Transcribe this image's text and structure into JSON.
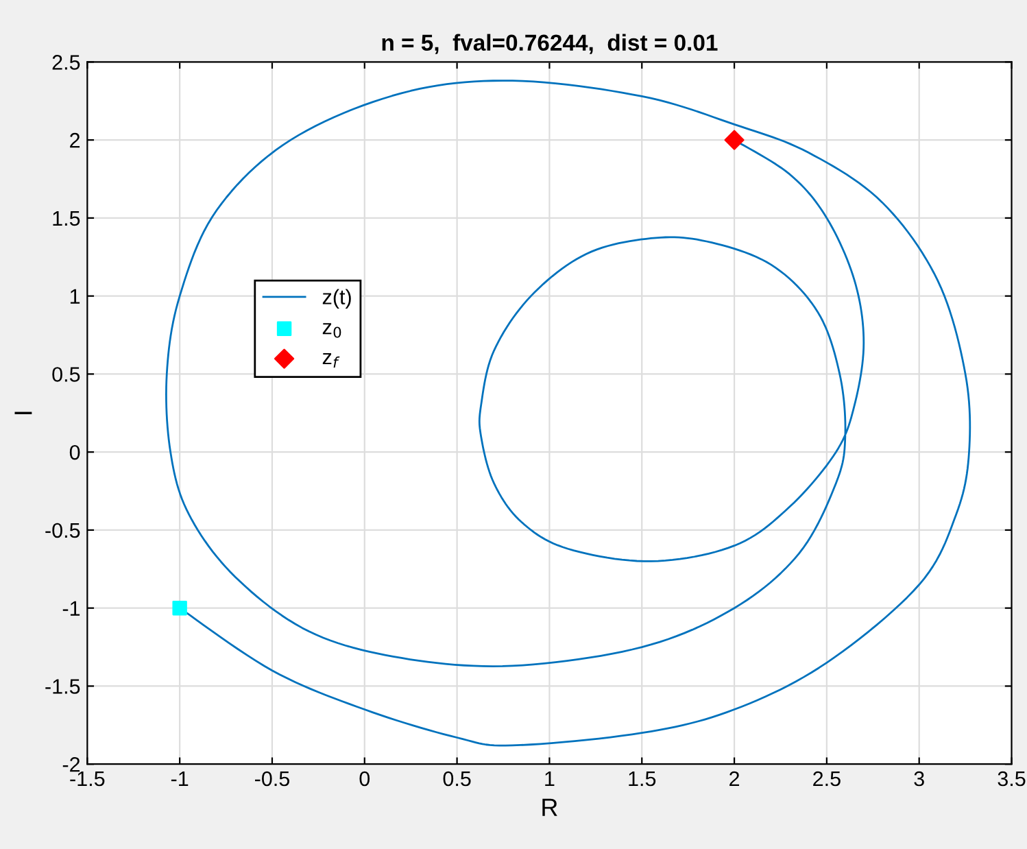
{
  "chart_data": {
    "type": "line",
    "title": "n = 5,  fval=0.76244,  dist = 0.01",
    "xlabel": "R",
    "ylabel": "I",
    "xlim": [
      -1.5,
      3.5
    ],
    "xticks": [
      -1.5,
      -1,
      -0.5,
      0,
      0.5,
      1,
      1.5,
      2,
      2.5,
      3,
      3.5
    ],
    "ylim": [
      -2,
      2.5
    ],
    "yticks": [
      -2,
      -1.5,
      -1,
      -0.5,
      0,
      0.5,
      1,
      1.5,
      2,
      2.5
    ],
    "grid": true,
    "legend": "left",
    "series": [
      {
        "name": "z(t)",
        "color": "#0072bd",
        "marker": "none",
        "line_style": "solid",
        "x": [
          -1,
          -0.5,
          0,
          0.5,
          0.8,
          1.5,
          2,
          2.5,
          3,
          3.2,
          3.27,
          3.25,
          3.1,
          2.8,
          2.4,
          2,
          1.5,
          0.8,
          0.2,
          -0.4,
          -0.8,
          -1.0,
          -1.07,
          -1.05,
          -0.95,
          -0.7,
          -0.3,
          0.2,
          0.8,
          1.5,
          2,
          2.35,
          2.55,
          2.6,
          2.57,
          2.45,
          2.2,
          1.85,
          1.55,
          1.2,
          0.9,
          0.7,
          0.63,
          0.63,
          0.7,
          0.85,
          1.1,
          1.55,
          2.0,
          2.3,
          2.55,
          2.65,
          2.7,
          2.65,
          2.5,
          2.3,
          2
        ],
        "values": [
          -1,
          -1.4,
          -1.65,
          -1.83,
          -1.88,
          -1.8,
          -1.65,
          -1.35,
          -0.85,
          -0.4,
          0,
          0.5,
          1.1,
          1.6,
          1.92,
          2.1,
          2.28,
          2.38,
          2.3,
          2.0,
          1.55,
          1.0,
          0.5,
          0,
          -0.4,
          -0.8,
          -1.15,
          -1.32,
          -1.37,
          -1.25,
          -1.0,
          -0.65,
          -0.2,
          0.1,
          0.5,
          0.9,
          1.2,
          1.35,
          1.37,
          1.27,
          1.0,
          0.65,
          0.3,
          0.1,
          -0.2,
          -0.45,
          -0.62,
          -0.7,
          -0.6,
          -0.35,
          0,
          0.3,
          0.7,
          1.1,
          1.5,
          1.78,
          2
        ]
      },
      {
        "name": "z$_{0}$",
        "type": "scatter",
        "color": "#00ffff",
        "marker": "square",
        "x": [
          -1
        ],
        "values": [
          -1
        ]
      },
      {
        "name": "z$_{f}$",
        "type": "scatter",
        "color": "#ff0000",
        "marker": "diamond",
        "x": [
          2
        ],
        "values": [
          2
        ]
      }
    ]
  }
}
